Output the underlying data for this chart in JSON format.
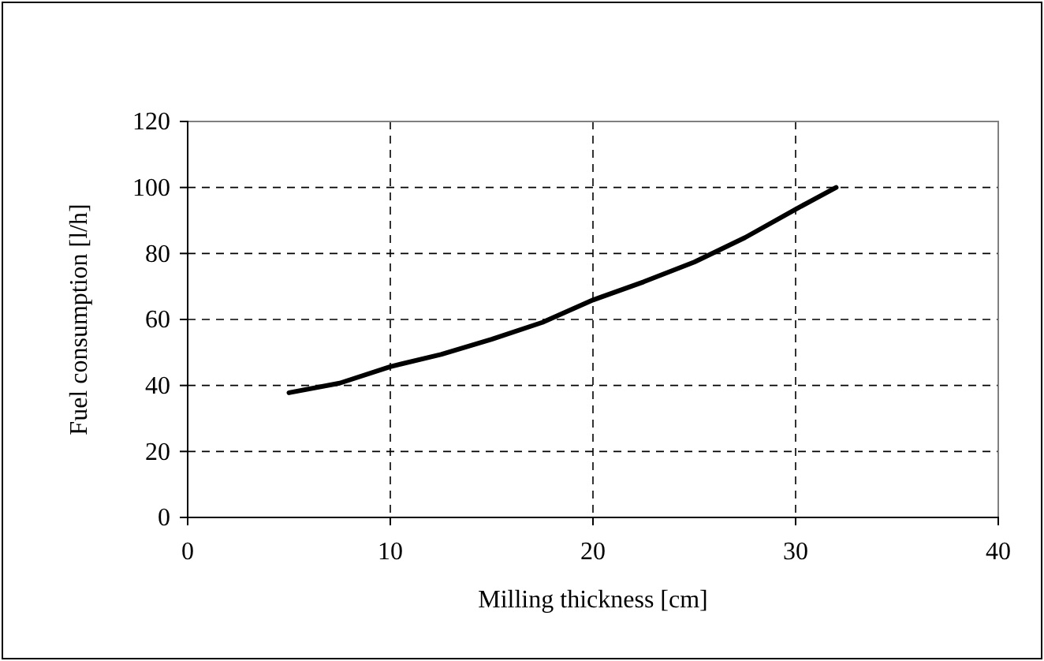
{
  "chart_data": {
    "type": "line",
    "xlabel": "Milling thickness [cm]",
    "ylabel": "Fuel consumption [l/h]",
    "x": [
      5,
      7.5,
      10,
      12.5,
      15,
      17.5,
      20,
      22.5,
      25,
      27.5,
      30,
      32
    ],
    "series": [
      {
        "color": "#000000",
        "values": [
          37.8,
          40.7,
          45.7,
          49.4,
          54,
          59.1,
          65.9,
          71.4,
          77.4,
          84.8,
          93.4,
          100
        ]
      }
    ],
    "xlim": [
      0,
      40
    ],
    "xticks": [
      0,
      10,
      20,
      30,
      40
    ],
    "ylim": [
      0,
      120
    ],
    "yticks": [
      0,
      20,
      40,
      60,
      80,
      100,
      120
    ],
    "grid": true,
    "marker": "none",
    "line_style": "solid"
  }
}
